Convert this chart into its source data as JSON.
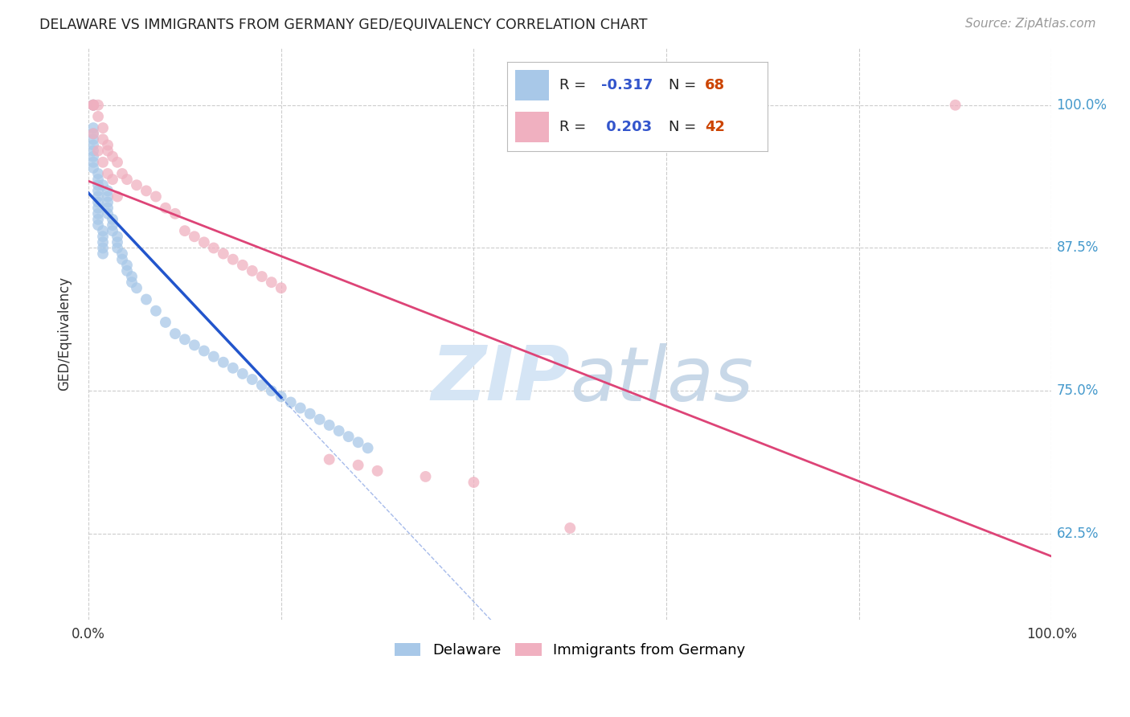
{
  "title": "DELAWARE VS IMMIGRANTS FROM GERMANY GED/EQUIVALENCY CORRELATION CHART",
  "source": "Source: ZipAtlas.com",
  "ylabel": "GED/Equivalency",
  "background_color": "#ffffff",
  "blue_color": "#a8c8e8",
  "pink_color": "#f0b0c0",
  "blue_line_color": "#2255cc",
  "pink_line_color": "#dd4477",
  "legend_R_blue": "-0.317",
  "legend_N_blue": "68",
  "legend_R_pink": "0.203",
  "legend_N_pink": "42",
  "blue_x": [
    0.5,
    0.5,
    0.5,
    0.5,
    0.5,
    0.5,
    0.5,
    0.5,
    0.5,
    0.5,
    1.0,
    1.0,
    1.0,
    1.0,
    1.0,
    1.0,
    1.0,
    1.0,
    1.0,
    1.0,
    1.5,
    1.5,
    1.5,
    1.5,
    1.5,
    1.5,
    2.0,
    2.0,
    2.0,
    2.0,
    2.0,
    2.5,
    2.5,
    2.5,
    3.0,
    3.0,
    3.0,
    3.5,
    3.5,
    4.0,
    4.0,
    4.5,
    4.5,
    5.0,
    6.0,
    7.0,
    8.0,
    9.0,
    10.0,
    11.0,
    12.0,
    13.0,
    14.0,
    15.0,
    16.0,
    17.0,
    18.0,
    19.0,
    20.0,
    21.0,
    22.0,
    23.0,
    24.0,
    25.0,
    26.0,
    27.0,
    28.0,
    29.0
  ],
  "blue_y": [
    100.0,
    100.0,
    98.0,
    97.5,
    97.0,
    96.5,
    96.0,
    95.5,
    95.0,
    94.5,
    94.0,
    93.5,
    93.0,
    92.5,
    92.0,
    91.5,
    91.0,
    90.5,
    90.0,
    89.5,
    89.0,
    88.5,
    88.0,
    87.5,
    87.0,
    93.0,
    92.5,
    92.0,
    91.5,
    91.0,
    90.5,
    90.0,
    89.5,
    89.0,
    88.5,
    88.0,
    87.5,
    87.0,
    86.5,
    86.0,
    85.5,
    85.0,
    84.5,
    84.0,
    83.0,
    82.0,
    81.0,
    80.0,
    79.5,
    79.0,
    78.5,
    78.0,
    77.5,
    77.0,
    76.5,
    76.0,
    75.5,
    75.0,
    74.5,
    74.0,
    73.5,
    73.0,
    72.5,
    72.0,
    71.5,
    71.0,
    70.5,
    70.0
  ],
  "pink_x": [
    0.5,
    0.5,
    0.5,
    1.0,
    1.0,
    1.5,
    1.5,
    2.0,
    2.0,
    2.5,
    3.0,
    3.5,
    4.0,
    5.0,
    6.0,
    7.0,
    8.0,
    9.0,
    10.0,
    11.0,
    12.0,
    13.0,
    14.0,
    15.0,
    16.0,
    17.0,
    18.0,
    19.0,
    20.0,
    25.0,
    28.0,
    30.0,
    35.0,
    40.0,
    50.0,
    90.0,
    0.5,
    1.0,
    1.5,
    2.0,
    2.5,
    3.0
  ],
  "pink_y": [
    100.0,
    100.0,
    100.0,
    100.0,
    99.0,
    98.0,
    97.0,
    96.5,
    96.0,
    95.5,
    95.0,
    94.0,
    93.5,
    93.0,
    92.5,
    92.0,
    91.0,
    90.5,
    89.0,
    88.5,
    88.0,
    87.5,
    87.0,
    86.5,
    86.0,
    85.5,
    85.0,
    84.5,
    84.0,
    69.0,
    68.5,
    68.0,
    67.5,
    67.0,
    63.0,
    100.0,
    97.5,
    96.0,
    95.0,
    94.0,
    93.5,
    92.0
  ],
  "ytick_positions": [
    62.5,
    75.0,
    87.5,
    100.0
  ],
  "ytick_labels": [
    "62.5%",
    "75.0%",
    "87.5%",
    "100.0%"
  ],
  "xlim": [
    0.0,
    100.0
  ],
  "ylim": [
    55.0,
    105.0
  ],
  "watermark_zip": "ZIP",
  "watermark_atlas": "atlas",
  "watermark_color_zip": "#d5e5f5",
  "watermark_color_atlas": "#c8d8e8"
}
